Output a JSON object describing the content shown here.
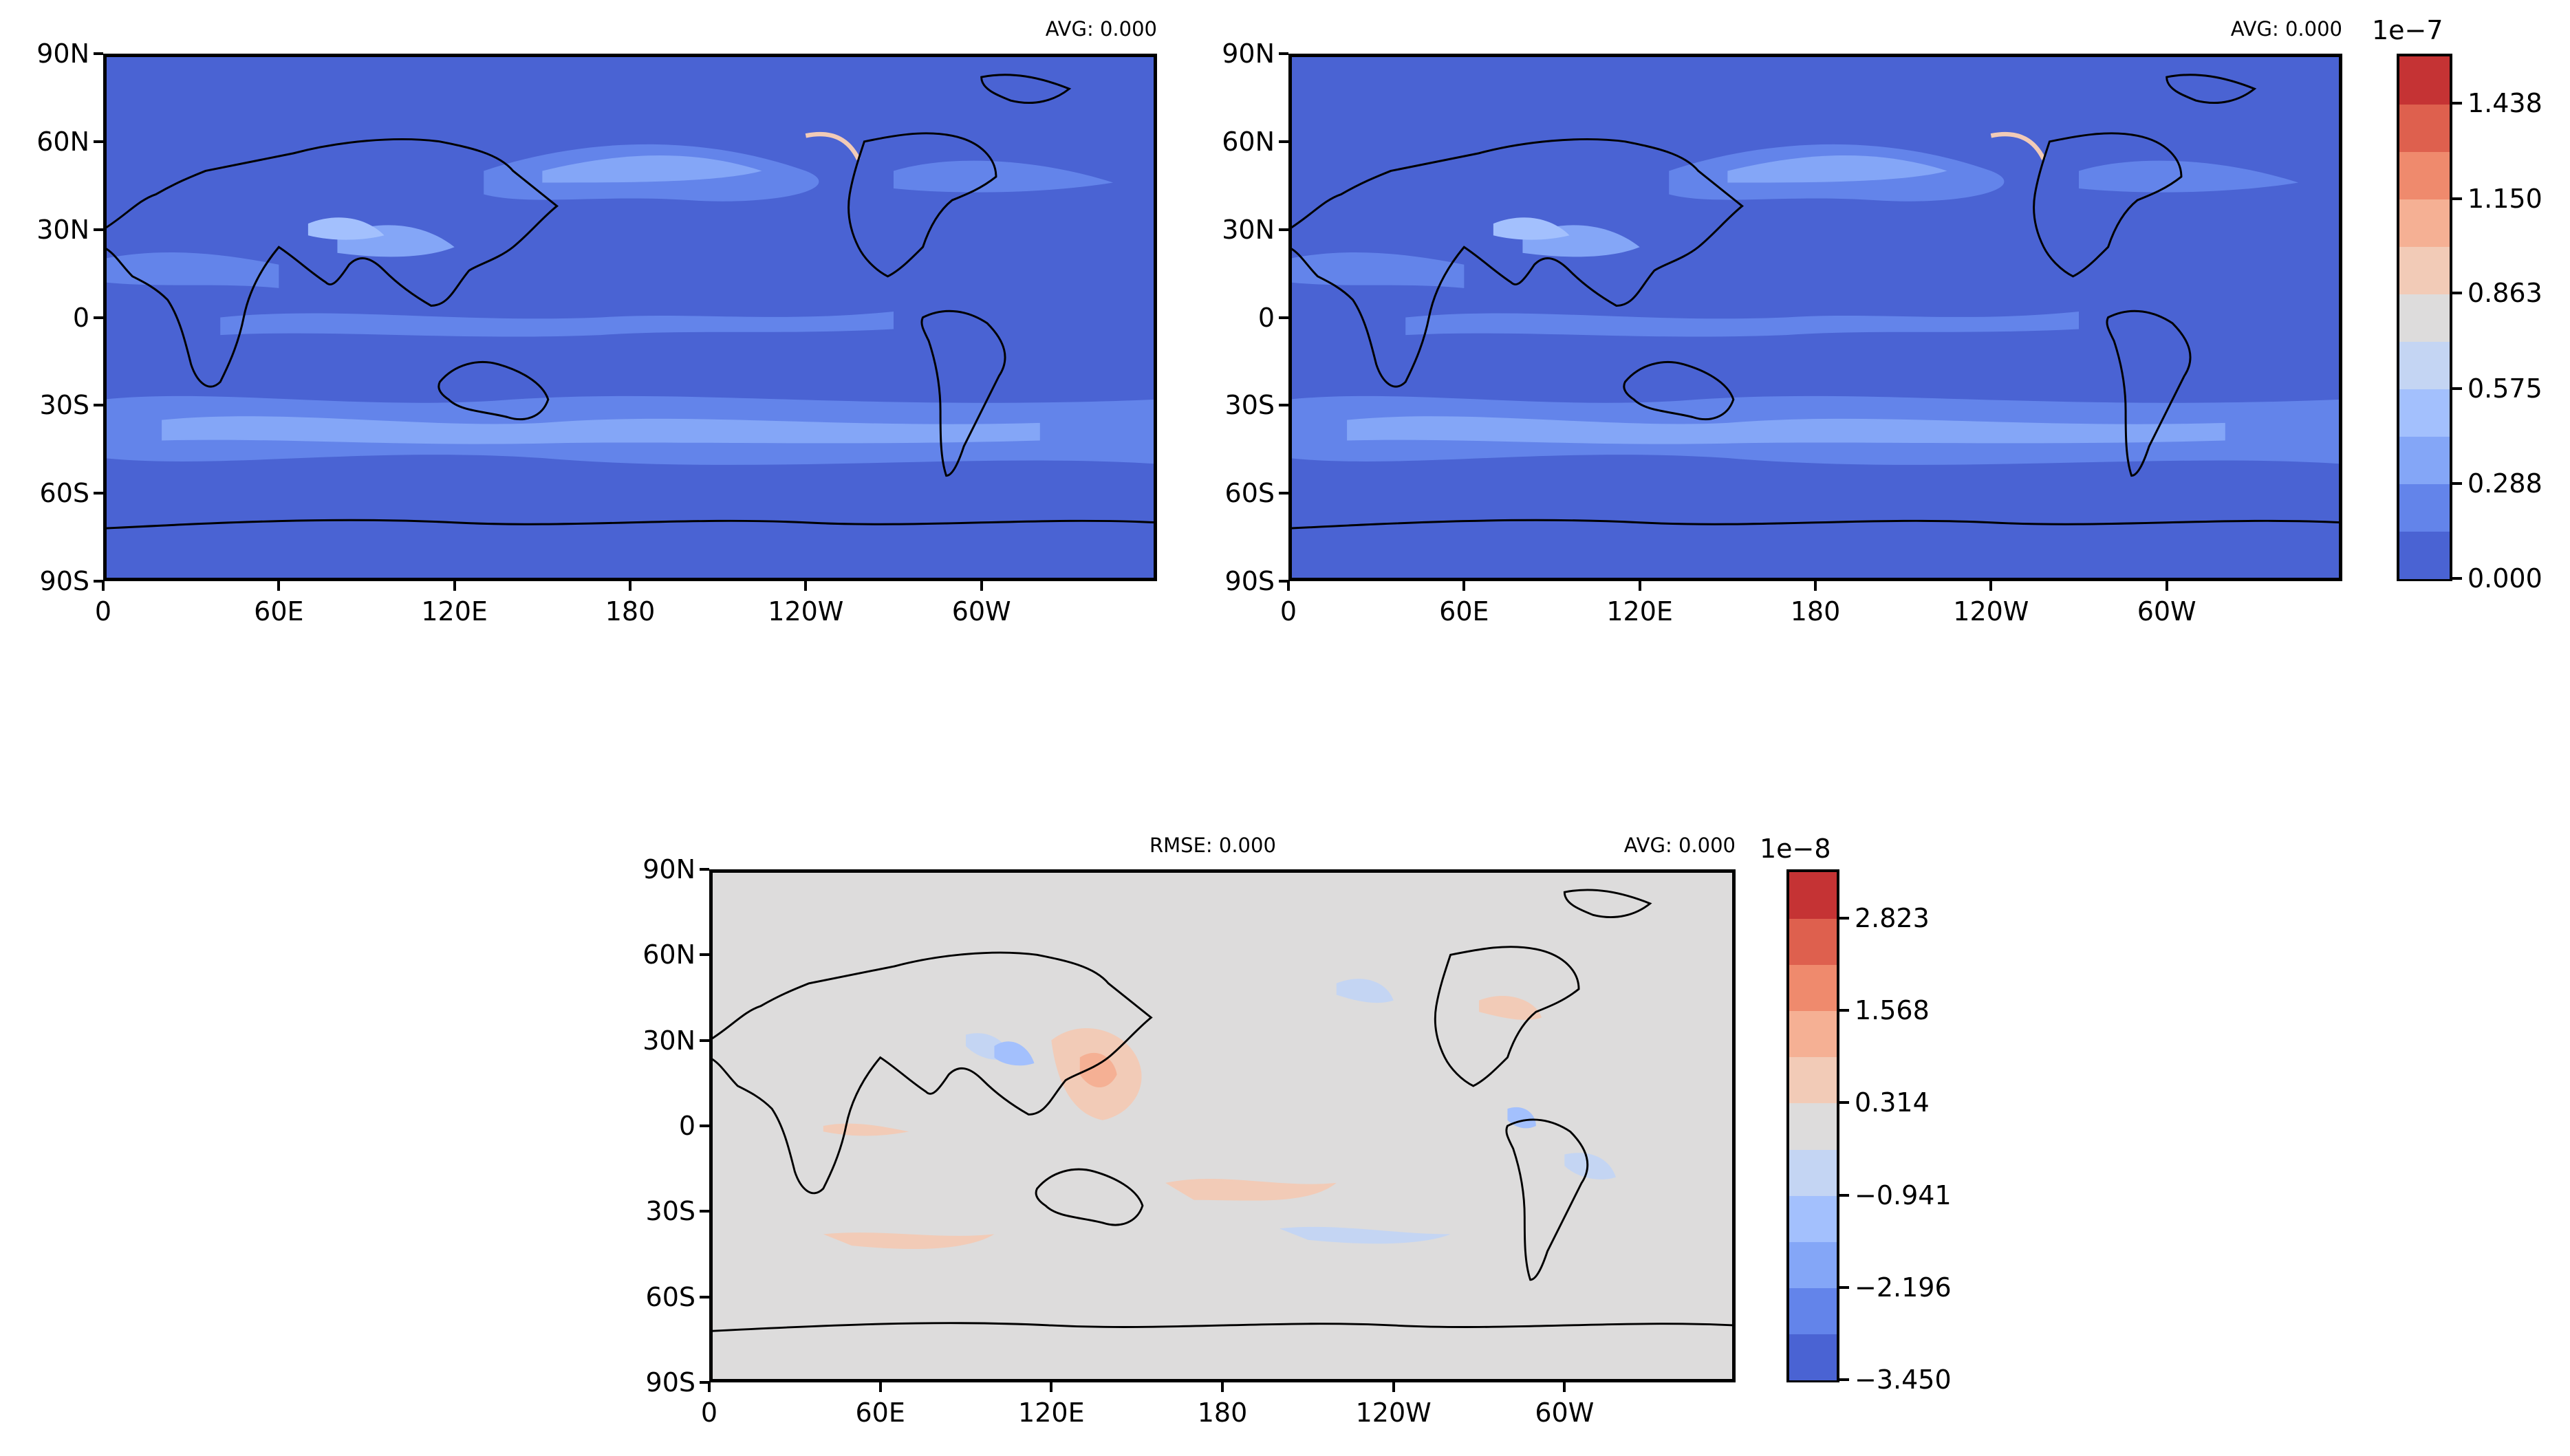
{
  "chart_data": [
    {
      "type": "heatmap",
      "subtype": "filled-contour map",
      "projection": "PlateCarree",
      "annotations": {
        "avg": "AVG: 0.000"
      },
      "x_ticks": [
        "0",
        "60E",
        "120E",
        "180",
        "120W",
        "60W"
      ],
      "y_ticks": [
        "90N",
        "60N",
        "30N",
        "0",
        "30S",
        "60S",
        "90S"
      ],
      "xlim": [
        0,
        360
      ],
      "ylim": [
        -90,
        90
      ],
      "colormap": "coolwarm",
      "dominant_color": "#4a63d3",
      "colorbar": null
    },
    {
      "type": "heatmap",
      "subtype": "filled-contour map",
      "projection": "PlateCarree",
      "annotations": {
        "avg": "AVG: 0.000"
      },
      "x_ticks": [
        "0",
        "60E",
        "120E",
        "180",
        "120W",
        "60W"
      ],
      "y_ticks": [
        "90N",
        "60N",
        "30N",
        "0",
        "30S",
        "60S",
        "90S"
      ],
      "xlim": [
        0,
        360
      ],
      "ylim": [
        -90,
        90
      ],
      "colormap": "coolwarm",
      "dominant_color": "#4a63d3",
      "colorbar": {
        "exponent_label": "1e−7",
        "tick_labels": [
          "1.438",
          "1.150",
          "0.863",
          "0.575",
          "0.288",
          "0.000"
        ],
        "tick_values": [
          1.438,
          1.15,
          0.863,
          0.575,
          0.288,
          0.0
        ],
        "range": [
          0.0,
          1.58
        ],
        "level_colors": [
          "#4a63d3",
          "#6384ea",
          "#84a6f7",
          "#a3c0fd",
          "#c4d5f3",
          "#dddcdc",
          "#f2cbb7",
          "#f5b094",
          "#ef8a6d",
          "#de604e",
          "#c53334"
        ]
      }
    },
    {
      "type": "heatmap",
      "subtype": "filled-contour map",
      "projection": "PlateCarree",
      "annotations": {
        "rmse": "RMSE: 0.000",
        "avg": "AVG: 0.000"
      },
      "x_ticks": [
        "0",
        "60E",
        "120E",
        "180",
        "120W",
        "60W"
      ],
      "y_ticks": [
        "90N",
        "60N",
        "30N",
        "0",
        "30S",
        "60S",
        "90S"
      ],
      "xlim": [
        0,
        360
      ],
      "ylim": [
        -90,
        90
      ],
      "colormap": "coolwarm",
      "dominant_color": "#dddcdc",
      "colorbar": {
        "exponent_label": "1e−8",
        "tick_labels": [
          "2.823",
          "1.568",
          "0.314",
          "−0.941",
          "−2.196",
          "−3.450"
        ],
        "tick_values": [
          2.823,
          1.568,
          0.314,
          -0.941,
          -2.196,
          -3.45
        ],
        "range": [
          -3.45,
          3.45
        ],
        "level_colors": [
          "#4a63d3",
          "#6384ea",
          "#84a6f7",
          "#a3c0fd",
          "#c4d5f3",
          "#dddcdc",
          "#f2cbb7",
          "#f5b094",
          "#ef8a6d",
          "#de604e",
          "#c53334"
        ]
      }
    }
  ]
}
